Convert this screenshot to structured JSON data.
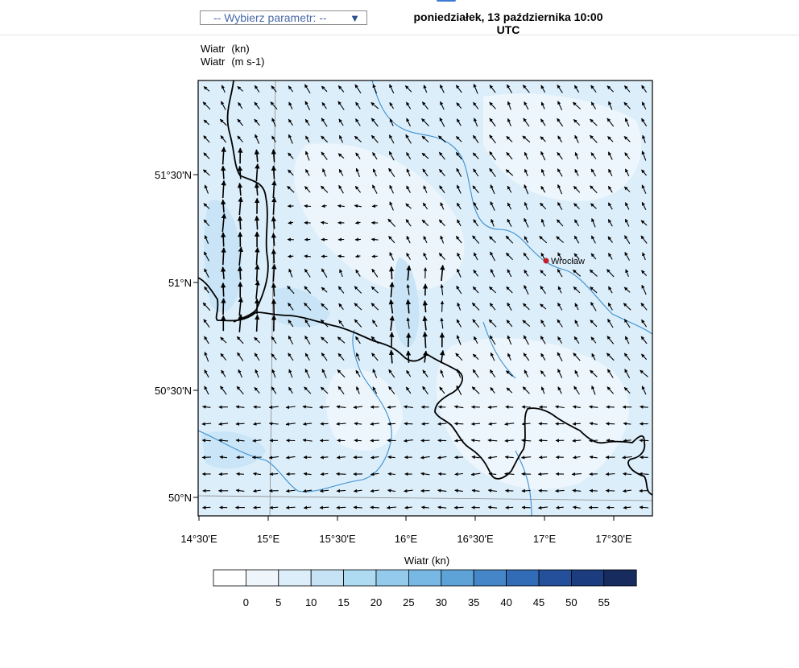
{
  "header": {
    "parameter_select": "-- Wybierz parametr: --",
    "dropdown_icon": "chevron-down-icon",
    "datetime_line1": "poniedziałek, 13 października 10:00",
    "datetime_line2": "UTC"
  },
  "fields": [
    {
      "name": "Wiatr",
      "unit": "(kn)"
    },
    {
      "name": "Wiatr",
      "unit": "(m s-1)"
    }
  ],
  "map": {
    "lat_ticks": [
      "51°30'N",
      "51°N",
      "50°30'N",
      "50°N"
    ],
    "lon_ticks": [
      "14°30'E",
      "15°E",
      "15°30'E",
      "16°E",
      "16°30'E",
      "17°E",
      "17°30'E"
    ],
    "city": "Wrocław",
    "city_color": "#c0202a",
    "border_color": "#000000",
    "river_color": "#3b8fd0"
  },
  "colorbar": {
    "title": "Wiatr  (kn)",
    "labels": [
      "0",
      "5",
      "10",
      "15",
      "20",
      "25",
      "30",
      "35",
      "40",
      "45",
      "50",
      "55"
    ],
    "colors": [
      "#ffffff",
      "#eef6fc",
      "#dceefa",
      "#c6e3f6",
      "#aedaf2",
      "#94cbed",
      "#78b8e4",
      "#5ea3d8",
      "#4586c8",
      "#336cb6",
      "#244f9a",
      "#1c3c80",
      "#172b5e"
    ]
  }
}
